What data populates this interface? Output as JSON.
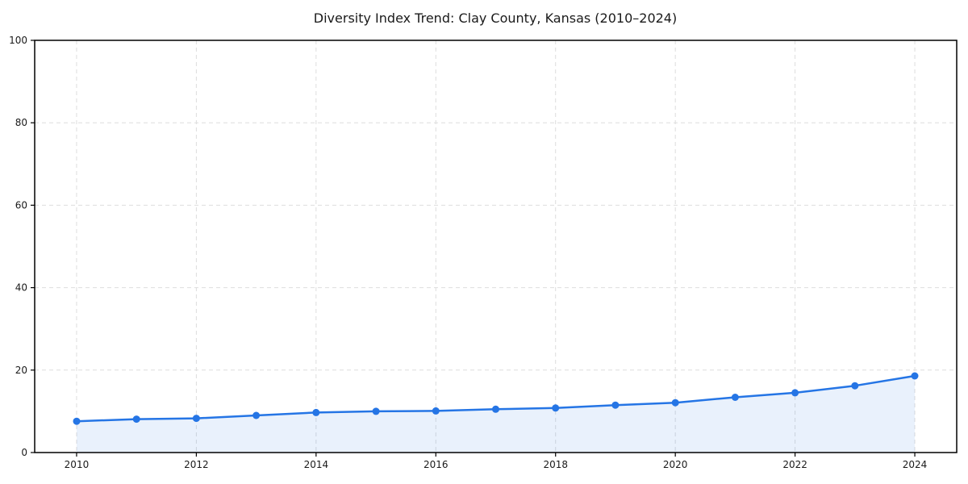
{
  "chart_data": {
    "type": "line",
    "title": "Diversity Index Trend: Clay County, Kansas (2010–2024)",
    "x": [
      2010,
      2011,
      2012,
      2013,
      2014,
      2015,
      2016,
      2017,
      2018,
      2019,
      2020,
      2021,
      2022,
      2023,
      2024
    ],
    "series": [
      {
        "name": "Diversity Index",
        "values": [
          7.6,
          8.1,
          8.3,
          9.0,
          9.7,
          10.0,
          10.1,
          10.5,
          10.8,
          11.5,
          12.1,
          13.4,
          14.5,
          16.2,
          18.6
        ]
      }
    ],
    "xlabel": "",
    "ylabel": "",
    "xlim": [
      2009.3,
      2024.7
    ],
    "ylim": [
      0,
      100
    ],
    "xticks": [
      2010,
      2012,
      2014,
      2016,
      2018,
      2020,
      2022,
      2024
    ],
    "yticks": [
      0,
      20,
      40,
      60,
      80,
      100
    ],
    "grid": true,
    "grid_style": "dashed",
    "legend": false,
    "markers": true,
    "area_fill": true,
    "colors": {
      "line": "#2575e5",
      "marker": "#2575e5",
      "fill": "#2575e5",
      "fill_opacity": "0.1",
      "grid": "#dddddd",
      "spine": "#000000",
      "tick_text": "#1a1a1a",
      "background": "#ffffff"
    }
  }
}
